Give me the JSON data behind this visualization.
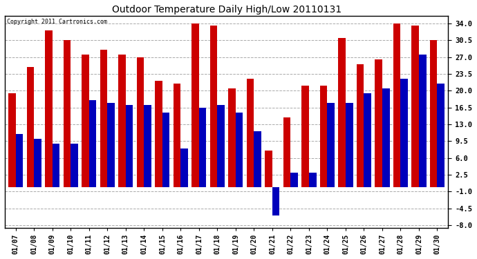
{
  "title": "Outdoor Temperature Daily High/Low 20110131",
  "copyright": "Copyright 2011 Cartronics.com",
  "dates": [
    "01/07",
    "01/08",
    "01/09",
    "01/10",
    "01/11",
    "01/12",
    "01/13",
    "01/14",
    "01/15",
    "01/16",
    "01/17",
    "01/18",
    "01/19",
    "01/20",
    "01/21",
    "01/22",
    "01/23",
    "01/24",
    "01/25",
    "01/26",
    "01/27",
    "01/28",
    "01/29",
    "01/30"
  ],
  "highs": [
    19.5,
    25.0,
    32.5,
    30.5,
    27.5,
    28.5,
    27.5,
    27.0,
    22.0,
    21.5,
    34.0,
    33.5,
    20.5,
    22.5,
    7.5,
    14.5,
    21.0,
    21.0,
    31.0,
    25.5,
    26.5,
    34.0,
    33.5,
    30.5
  ],
  "lows": [
    11.0,
    10.0,
    9.0,
    9.0,
    18.0,
    17.5,
    17.0,
    17.0,
    15.5,
    8.0,
    16.5,
    17.0,
    15.5,
    11.5,
    -6.0,
    3.0,
    3.0,
    17.5,
    17.5,
    19.5,
    20.5,
    22.5,
    27.5,
    21.5
  ],
  "high_color": "#cc0000",
  "low_color": "#0000bb",
  "background_color": "#ffffff",
  "plot_bg_color": "#ffffff",
  "grid_color": "#aaaaaa",
  "ylim": [
    -8.5,
    35.5
  ],
  "yticks": [
    -8.0,
    -4.5,
    -1.0,
    2.5,
    6.0,
    9.5,
    13.0,
    16.5,
    20.0,
    23.5,
    27.0,
    30.5,
    34.0
  ],
  "bar_width": 0.4,
  "fig_width": 6.9,
  "fig_height": 3.75,
  "dpi": 100
}
